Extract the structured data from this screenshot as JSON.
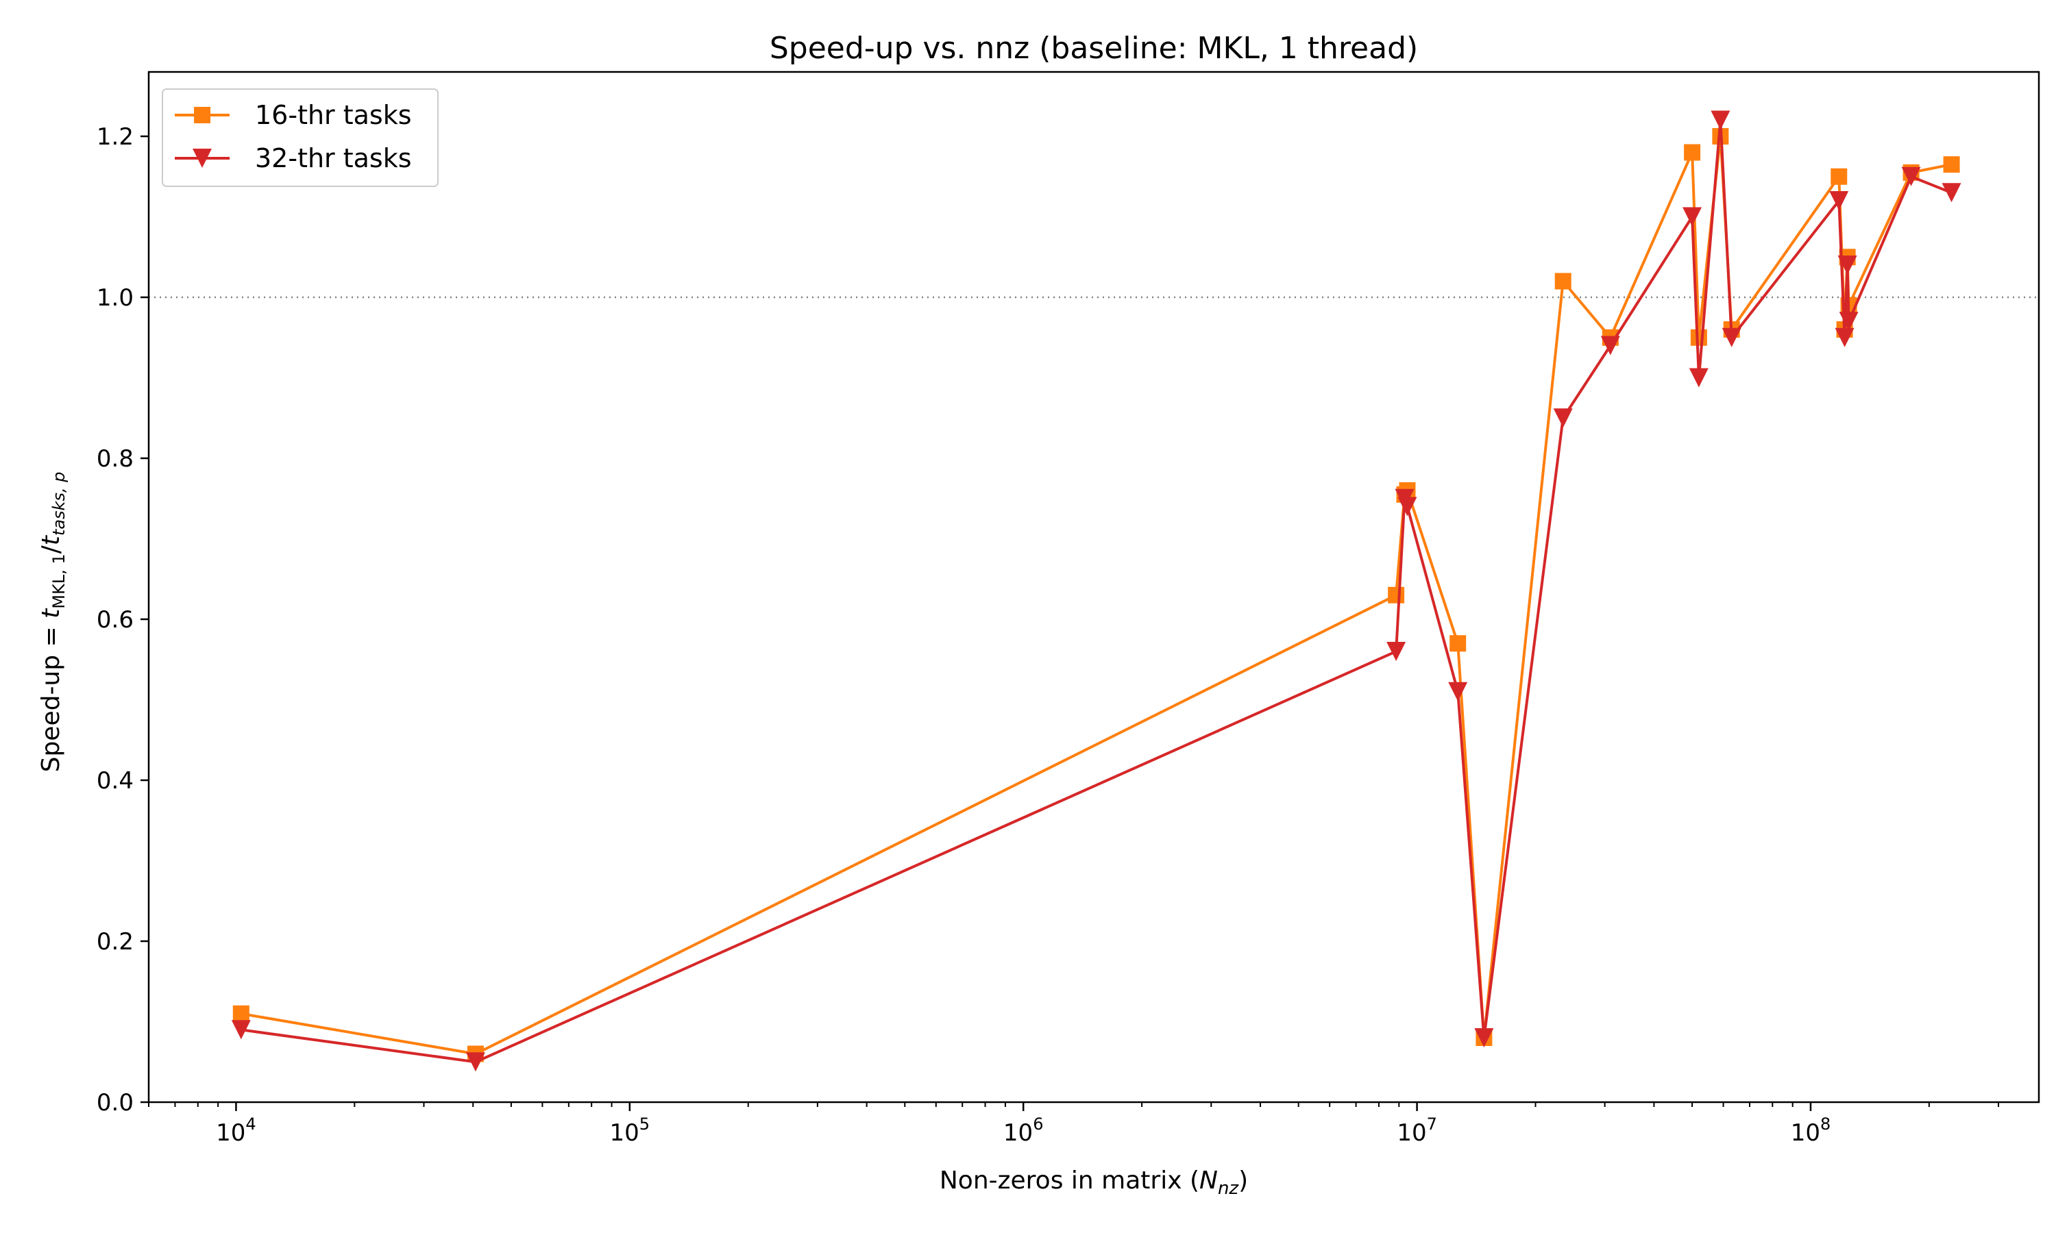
{
  "chart_data": {
    "type": "line",
    "title": "Speed-up vs. nnz (baseline: MKL, 1 thread)",
    "xlabel": {
      "text": "Non-zeros in matrix (",
      "var": "N",
      "sub": "nz",
      "close": ")"
    },
    "ylabel": {
      "text": "Speed-up  = ",
      "t1": "t",
      "t1_sub": "MKL, 1",
      "slash": "/",
      "t2": "t",
      "t2_sub": "tasks, p"
    },
    "x_scale": "log",
    "xlim": [
      6000,
      380000000
    ],
    "ylim": [
      0.0,
      1.28
    ],
    "x_ticks": [
      {
        "value": 10000,
        "base": "10",
        "exp": "4"
      },
      {
        "value": 100000,
        "base": "10",
        "exp": "5"
      },
      {
        "value": 1000000,
        "base": "10",
        "exp": "6"
      },
      {
        "value": 10000000,
        "base": "10",
        "exp": "7"
      },
      {
        "value": 100000000,
        "base": "10",
        "exp": "8"
      }
    ],
    "y_ticks": [
      {
        "value": 0.0,
        "label": "0.0"
      },
      {
        "value": 0.2,
        "label": "0.2"
      },
      {
        "value": 0.4,
        "label": "0.4"
      },
      {
        "value": 0.6,
        "label": "0.6"
      },
      {
        "value": 0.8,
        "label": "0.8"
      },
      {
        "value": 1.0,
        "label": "1.0"
      },
      {
        "value": 1.2,
        "label": "1.2"
      }
    ],
    "reference_line": {
      "y": 1.0,
      "style": "dotted",
      "color": "#808080"
    },
    "grid": false,
    "legend_position": "top-left",
    "series": [
      {
        "name": "16-thr tasks",
        "color": "#ff7f0e",
        "marker": "square",
        "x": [
          10300,
          40600,
          8850000,
          9300000,
          9450000,
          12700000,
          14800000,
          23500000,
          31000000,
          50000000,
          52000000,
          59000000,
          63000000,
          118000000,
          122000000,
          124000000,
          125000000,
          180000000,
          228000000
        ],
        "y": [
          0.11,
          0.06,
          0.63,
          0.755,
          0.76,
          0.57,
          0.08,
          1.02,
          0.95,
          1.18,
          0.95,
          1.2,
          0.96,
          1.15,
          0.96,
          1.05,
          0.99,
          1.155,
          1.165
        ]
      },
      {
        "name": "32-thr tasks",
        "color": "#d62728",
        "marker": "triangle-down",
        "x": [
          10300,
          40600,
          8850000,
          9300000,
          9450000,
          12700000,
          14800000,
          23500000,
          31000000,
          50000000,
          52000000,
          59000000,
          63000000,
          118000000,
          122000000,
          124000000,
          125000000,
          180000000,
          228000000
        ],
        "y": [
          0.09,
          0.05,
          0.56,
          0.75,
          0.74,
          0.51,
          0.08,
          0.85,
          0.94,
          1.1,
          0.9,
          1.22,
          0.95,
          1.12,
          0.95,
          1.04,
          0.97,
          1.15,
          1.13
        ]
      }
    ]
  }
}
